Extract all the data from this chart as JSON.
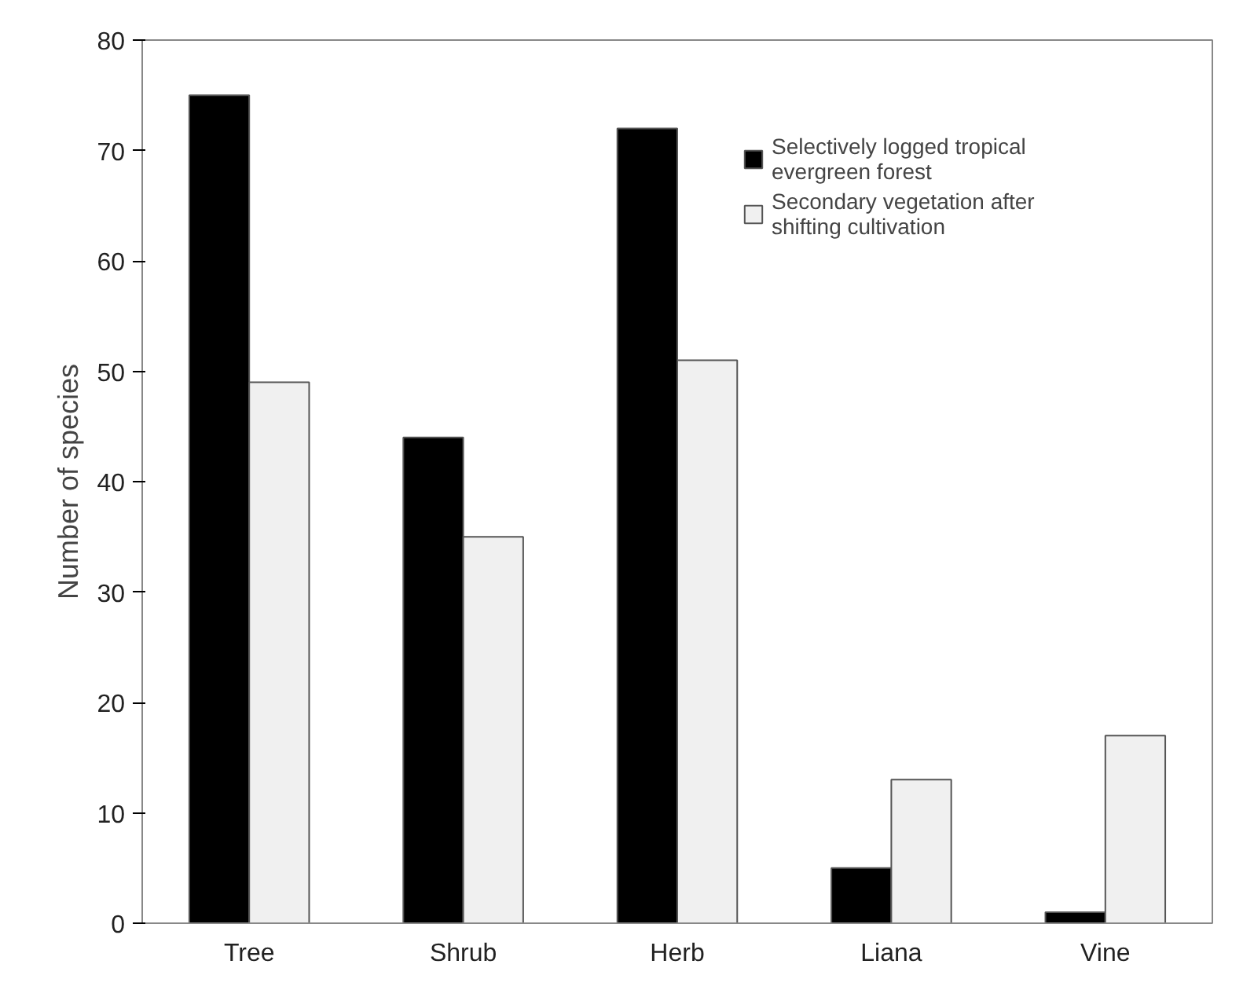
{
  "chart_data": {
    "type": "bar",
    "ylabel": "Number of species",
    "categories": [
      "Tree",
      "Shrub",
      "Herb",
      "Liana",
      "Vine"
    ],
    "series": [
      {
        "name": "Selectively logged tropical evergreen forest",
        "color": "#000000",
        "values": [
          75,
          44,
          72,
          5,
          1
        ]
      },
      {
        "name": "Secondary vegetation after shifting cultivation",
        "color": "#f0f0f0",
        "values": [
          49,
          35,
          51,
          13,
          17
        ]
      }
    ],
    "ylim": [
      0,
      80
    ],
    "yticks": [
      0,
      10,
      20,
      30,
      40,
      50,
      60,
      70,
      80
    ],
    "grid": false,
    "legend": "top right"
  }
}
